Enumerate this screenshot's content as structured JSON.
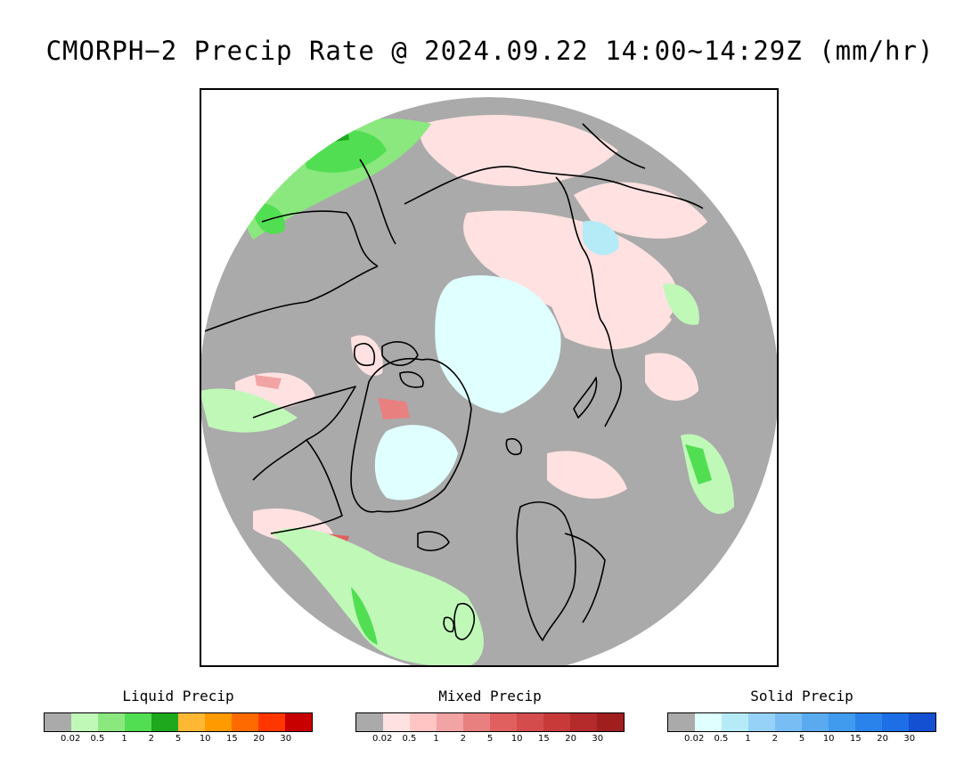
{
  "title": "CMORPH−2 Precip Rate @ 2024.09.22 14:00~14:29Z (mm/hr)",
  "colors": {
    "no_precip": "#aaaaaa",
    "frame": "#000000",
    "coastline": "#000000"
  },
  "map": {
    "projection": "north polar stereographic",
    "features": [
      "greenland-landmass",
      "arctic-ocean-snow",
      "scandinavia",
      "iceland",
      "north-america",
      "siberia",
      "british-isles",
      "north-pacific-rain"
    ]
  },
  "legends": [
    {
      "id": "liquid",
      "title": "Liquid Precip",
      "colors": [
        "#aaaaaa",
        "#c0f8b8",
        "#8be87f",
        "#52de52",
        "#1ea81e",
        "#ffb834",
        "#ff9a00",
        "#ff6a00",
        "#ff3600",
        "#c80000"
      ],
      "ticks": [
        "0.02",
        "0.5",
        "1",
        "2",
        "5",
        "10",
        "15",
        "20",
        "30"
      ]
    },
    {
      "id": "mixed",
      "title": "Mixed Precip",
      "colors": [
        "#aaaaaa",
        "#ffe1e1",
        "#ffc4c4",
        "#f2a3a3",
        "#e88080",
        "#e06060",
        "#d44c4c",
        "#c83a3a",
        "#b52a2a",
        "#a01e1e"
      ],
      "ticks": [
        "0.02",
        "0.5",
        "1",
        "2",
        "5",
        "10",
        "15",
        "20",
        "30"
      ]
    },
    {
      "id": "solid",
      "title": "Solid Precip",
      "colors": [
        "#aaaaaa",
        "#e0ffff",
        "#b4ebf7",
        "#96d2f7",
        "#78bef5",
        "#5aaaf0",
        "#409aee",
        "#2a82eb",
        "#1e6ee6",
        "#1450d2"
      ],
      "ticks": [
        "0.02",
        "0.5",
        "1",
        "2",
        "5",
        "10",
        "15",
        "20",
        "30"
      ]
    }
  ]
}
